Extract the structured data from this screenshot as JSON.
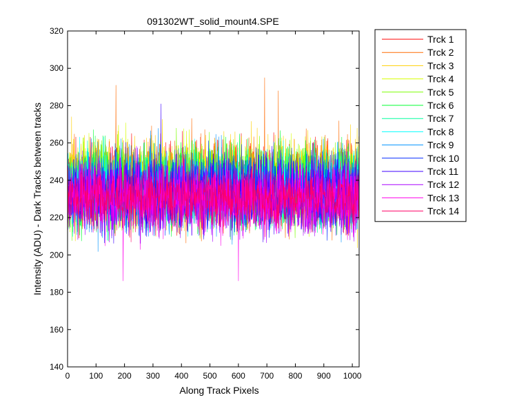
{
  "chart_data": {
    "type": "line",
    "title": "091302WT_solid_mount4.SPE",
    "xlabel": "Along Track Pixels",
    "ylabel": "Intensity (ADU) - Dark Tracks between tracks",
    "xlim": [
      0,
      1024
    ],
    "ylim": [
      140,
      320
    ],
    "x_ticks": [
      0,
      100,
      200,
      300,
      400,
      500,
      600,
      700,
      800,
      900,
      1000
    ],
    "y_ticks": [
      140,
      160,
      180,
      200,
      220,
      240,
      260,
      280,
      300,
      320
    ],
    "grid": false,
    "legend_position": "outside-right",
    "x_points": 1024,
    "series": [
      {
        "name": "Trck 1",
        "color": "#ff0000",
        "mean": 238,
        "spread": 11
      },
      {
        "name": "Trck 2",
        "color": "#ff6a00",
        "mean": 238,
        "spread": 12,
        "peaks": [
          [
            170,
            291
          ],
          [
            692,
            295
          ],
          [
            740,
            288
          ]
        ]
      },
      {
        "name": "Trck 3",
        "color": "#ffd000",
        "mean": 240,
        "spread": 12
      },
      {
        "name": "Trck 4",
        "color": "#d8ff00",
        "mean": 238,
        "spread": 11
      },
      {
        "name": "Trck 5",
        "color": "#7bff00",
        "mean": 238,
        "spread": 11
      },
      {
        "name": "Trck 6",
        "color": "#00ff30",
        "mean": 237,
        "spread": 11
      },
      {
        "name": "Trck 7",
        "color": "#00ff9e",
        "mean": 236,
        "spread": 10
      },
      {
        "name": "Trck 8",
        "color": "#00ffff",
        "mean": 235,
        "spread": 10
      },
      {
        "name": "Trck 9",
        "color": "#0093ff",
        "mean": 235,
        "spread": 11
      },
      {
        "name": "Trck 10",
        "color": "#0029ff",
        "mean": 234,
        "spread": 10
      },
      {
        "name": "Trck 11",
        "color": "#3d00ff",
        "mean": 233,
        "spread": 10,
        "peaks": [
          [
            328,
            281
          ]
        ]
      },
      {
        "name": "Trck 12",
        "color": "#a800ff",
        "mean": 232,
        "spread": 10
      },
      {
        "name": "Trck 13",
        "color": "#ff00ec",
        "mean": 230,
        "spread": 10,
        "peaks": [
          [
            195,
            186
          ],
          [
            600,
            186
          ]
        ]
      },
      {
        "name": "Trck 14",
        "color": "#ff0066",
        "mean": 231,
        "spread": 8
      }
    ]
  }
}
